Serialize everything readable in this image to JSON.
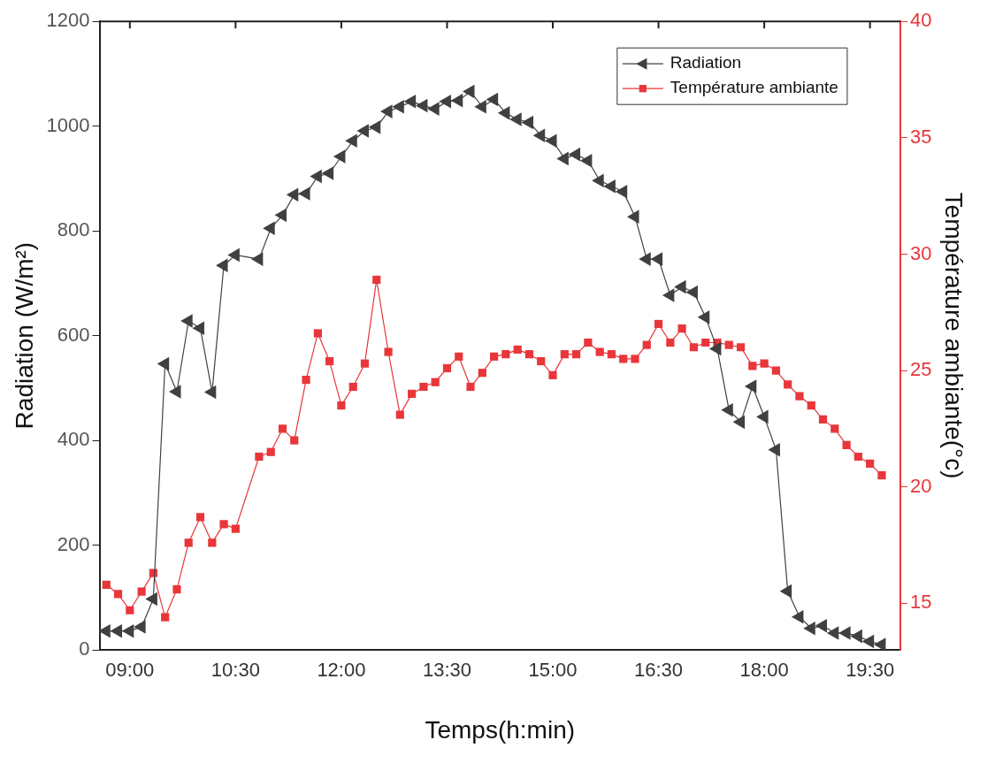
{
  "chart_data": {
    "type": "line",
    "xlabel": "Temps(h:min)",
    "ylabel": "Radiation (W/m²)",
    "y2label": "Température ambiante(°c)",
    "x": [
      8.667,
      8.833,
      9,
      9.167,
      9.333,
      9.5,
      9.667,
      9.833,
      10,
      10.167,
      10.333,
      10.5,
      10.833,
      11,
      11.167,
      11.333,
      11.5,
      11.667,
      11.833,
      12,
      12.167,
      12.333,
      12.5,
      12.667,
      12.833,
      13,
      13.167,
      13.333,
      13.5,
      13.667,
      13.833,
      14,
      14.167,
      14.333,
      14.5,
      14.667,
      14.833,
      15,
      15.167,
      15.333,
      15.5,
      15.667,
      15.833,
      16,
      16.167,
      16.333,
      16.5,
      16.667,
      16.833,
      17,
      17.167,
      17.333,
      17.5,
      17.667,
      17.833,
      18,
      18.167,
      18.333,
      18.5,
      18.667,
      18.833,
      19,
      19.167,
      19.333,
      19.5,
      19.667
    ],
    "series": [
      {
        "name": "Radiation",
        "color": "#404040",
        "marker": "triangle",
        "values": [
          36,
          36,
          36,
          44,
          97,
          546,
          493,
          628,
          614,
          492,
          734,
          754,
          746,
          805,
          830,
          869,
          871,
          904,
          910,
          942,
          972,
          991,
          998,
          1028,
          1037,
          1047,
          1039,
          1033,
          1047,
          1049,
          1066,
          1037,
          1051,
          1025,
          1013,
          1007,
          982,
          972,
          938,
          946,
          934,
          896,
          885,
          875,
          827,
          746,
          746,
          677,
          693,
          683,
          635,
          575,
          458,
          435,
          503,
          445,
          382,
          112,
          63,
          41,
          46,
          32,
          32,
          26,
          16,
          10
        ]
      },
      {
        "name": "Température ambiante",
        "color": "#e8363a",
        "marker": "square",
        "axis": "y2",
        "values": [
          15.8,
          15.4,
          14.7,
          15.5,
          16.3,
          14.4,
          15.6,
          17.6,
          18.7,
          17.6,
          18.4,
          18.2,
          21.3,
          21.5,
          22.5,
          22.0,
          24.6,
          26.6,
          25.4,
          23.5,
          24.3,
          25.3,
          28.9,
          25.8,
          23.1,
          24.0,
          24.3,
          24.5,
          25.1,
          25.6,
          24.3,
          24.9,
          25.6,
          25.7,
          25.9,
          25.7,
          25.4,
          24.8,
          25.7,
          25.7,
          26.2,
          25.8,
          25.7,
          25.5,
          25.5,
          26.1,
          27.0,
          26.2,
          26.8,
          26.0,
          26.2,
          26.2,
          26.1,
          26.0,
          25.2,
          25.3,
          25.0,
          24.4,
          23.9,
          23.5,
          22.9,
          22.5,
          21.8,
          21.3,
          21.0,
          20.5
        ]
      }
    ],
    "xlim": [
      8.57,
      19.93
    ],
    "xticks": [
      {
        "value": 9,
        "label": "09:00"
      },
      {
        "value": 10.5,
        "label": "10:30"
      },
      {
        "value": 12,
        "label": "12:00"
      },
      {
        "value": 13.5,
        "label": "13:30"
      },
      {
        "value": 15,
        "label": "15:00"
      },
      {
        "value": 16.5,
        "label": "16:30"
      },
      {
        "value": 18,
        "label": "18:00"
      },
      {
        "value": 19.5,
        "label": "19:30"
      }
    ],
    "ylim": [
      0,
      1200
    ],
    "yticks": [
      0,
      200,
      400,
      600,
      800,
      1000,
      1200
    ],
    "y2lim": [
      13,
      40
    ],
    "y2ticks": [
      15,
      20,
      25,
      30,
      35,
      40
    ],
    "legend": "top right",
    "grid": false,
    "line_style": "solid"
  }
}
